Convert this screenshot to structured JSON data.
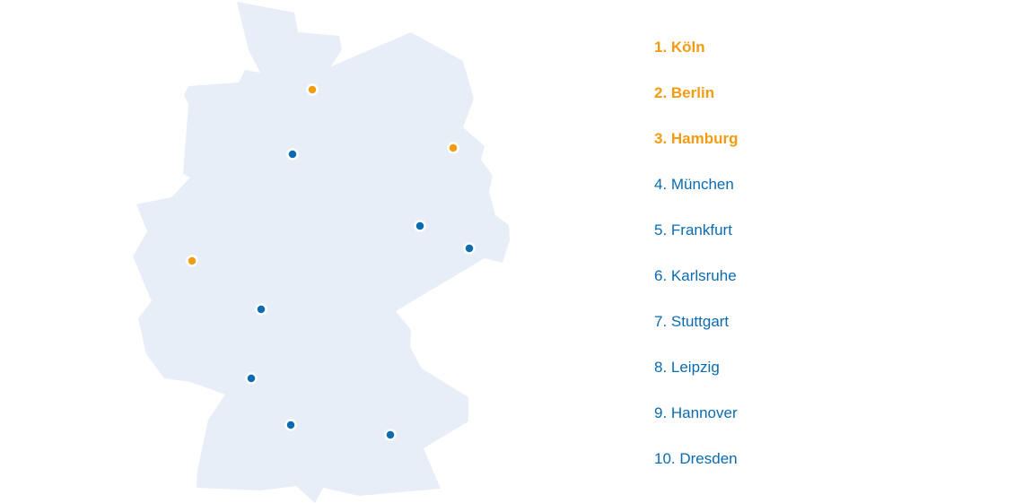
{
  "colors": {
    "land": "#e8eef7",
    "highlight": "#f39c12",
    "normal": "#0a6bb0",
    "marker_outline": "#ffffff"
  },
  "cities": [
    {
      "rank": "1.",
      "name": "Köln",
      "label": "1. Köln",
      "highlight": true
    },
    {
      "rank": "2.",
      "name": "Berlin",
      "label": "2. Berlin",
      "highlight": true
    },
    {
      "rank": "3.",
      "name": "Hamburg",
      "label": "3. Hamburg",
      "highlight": true
    },
    {
      "rank": "4.",
      "name": "München",
      "label": "4. München",
      "highlight": false
    },
    {
      "rank": "5.",
      "name": "Frankfurt",
      "label": "5. Frankfurt",
      "highlight": false
    },
    {
      "rank": "6.",
      "name": "Karlsruhe",
      "label": "6. Karlsruhe",
      "highlight": false
    },
    {
      "rank": "7.",
      "name": "Stuttgart",
      "label": "7. Stuttgart",
      "highlight": false
    },
    {
      "rank": "8.",
      "name": "Leipzig",
      "label": "8. Leipzig",
      "highlight": false
    },
    {
      "rank": "9.",
      "name": "Hannover",
      "label": "9. Hannover",
      "highlight": false
    },
    {
      "rank": "10.",
      "name": "Dresden",
      "label": "10. Dresden",
      "highlight": false
    }
  ]
}
